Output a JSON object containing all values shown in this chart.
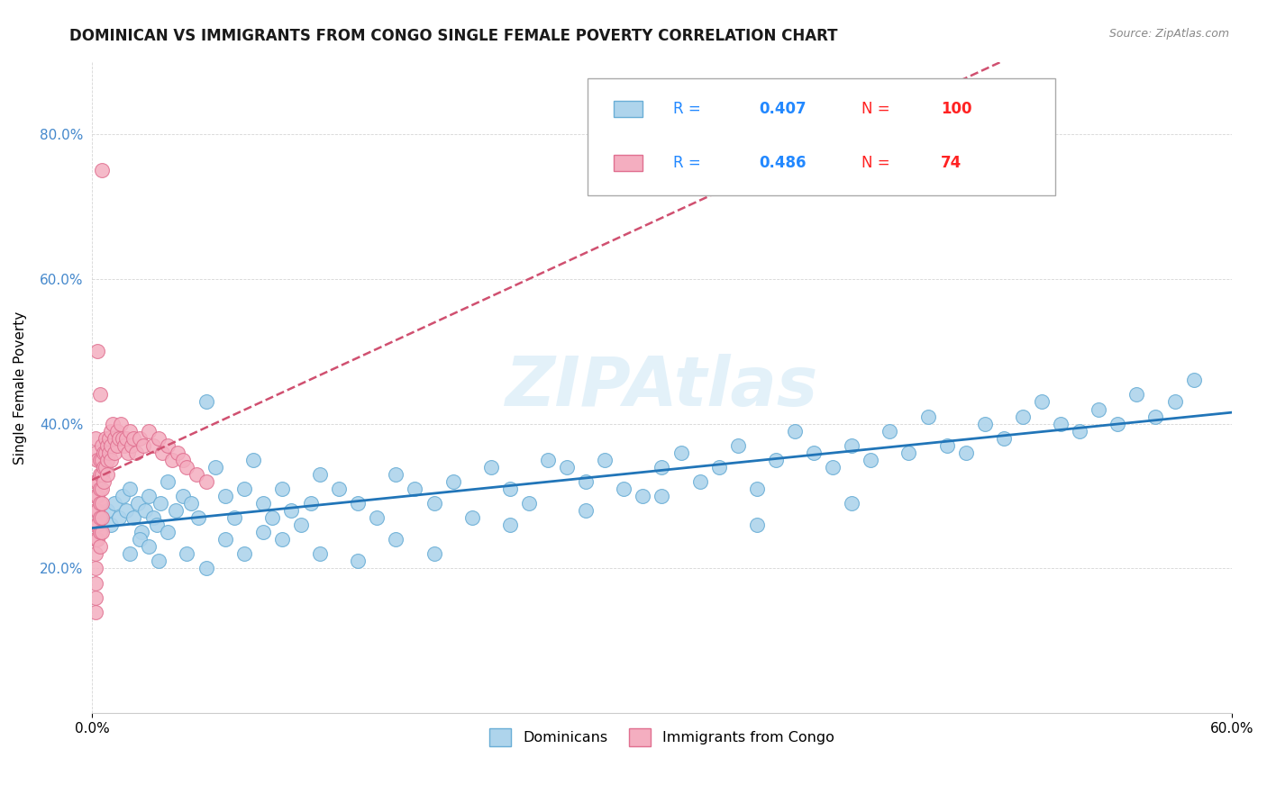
{
  "title": "DOMINICAN VS IMMIGRANTS FROM CONGO SINGLE FEMALE POVERTY CORRELATION CHART",
  "source": "Source: ZipAtlas.com",
  "ylabel": "Single Female Poverty",
  "xlim": [
    0.0,
    0.6
  ],
  "ylim": [
    0.0,
    0.9
  ],
  "x_ticks": [
    0.0,
    0.6
  ],
  "x_tick_labels": [
    "0.0%",
    "60.0%"
  ],
  "y_tick_labels": [
    "20.0%",
    "40.0%",
    "60.0%",
    "80.0%"
  ],
  "y_ticks": [
    0.2,
    0.4,
    0.6,
    0.8
  ],
  "dominicans_R": 0.407,
  "dominicans_N": 100,
  "congo_R": 0.486,
  "congo_N": 74,
  "dominican_color": "#aed4ec",
  "dominican_edge": "#6aaed6",
  "congo_color": "#f4aec0",
  "congo_edge": "#e07090",
  "blue_line_color": "#2175b8",
  "pink_line_color": "#d05070",
  "legend_R_color": "#2288ff",
  "legend_N_color": "#ff2222",
  "watermark": "ZIPAtlas",
  "background_color": "#ffffff",
  "dominicans_x": [
    0.005,
    0.008,
    0.01,
    0.012,
    0.014,
    0.016,
    0.018,
    0.02,
    0.022,
    0.024,
    0.026,
    0.028,
    0.03,
    0.032,
    0.034,
    0.036,
    0.04,
    0.044,
    0.048,
    0.052,
    0.056,
    0.06,
    0.065,
    0.07,
    0.075,
    0.08,
    0.085,
    0.09,
    0.095,
    0.1,
    0.105,
    0.11,
    0.115,
    0.12,
    0.13,
    0.14,
    0.15,
    0.16,
    0.17,
    0.18,
    0.19,
    0.2,
    0.21,
    0.22,
    0.23,
    0.24,
    0.25,
    0.26,
    0.27,
    0.28,
    0.29,
    0.3,
    0.31,
    0.32,
    0.33,
    0.34,
    0.35,
    0.36,
    0.37,
    0.38,
    0.39,
    0.4,
    0.41,
    0.42,
    0.43,
    0.44,
    0.45,
    0.46,
    0.47,
    0.48,
    0.49,
    0.5,
    0.51,
    0.52,
    0.53,
    0.54,
    0.55,
    0.56,
    0.57,
    0.58,
    0.02,
    0.025,
    0.03,
    0.035,
    0.04,
    0.05,
    0.06,
    0.07,
    0.08,
    0.09,
    0.1,
    0.12,
    0.14,
    0.16,
    0.18,
    0.22,
    0.26,
    0.3,
    0.35,
    0.4
  ],
  "dominicans_y": [
    0.27,
    0.28,
    0.26,
    0.29,
    0.27,
    0.3,
    0.28,
    0.31,
    0.27,
    0.29,
    0.25,
    0.28,
    0.3,
    0.27,
    0.26,
    0.29,
    0.32,
    0.28,
    0.3,
    0.29,
    0.27,
    0.43,
    0.34,
    0.3,
    0.27,
    0.31,
    0.35,
    0.29,
    0.27,
    0.31,
    0.28,
    0.26,
    0.29,
    0.33,
    0.31,
    0.29,
    0.27,
    0.33,
    0.31,
    0.29,
    0.32,
    0.27,
    0.34,
    0.31,
    0.29,
    0.35,
    0.34,
    0.32,
    0.35,
    0.31,
    0.3,
    0.34,
    0.36,
    0.32,
    0.34,
    0.37,
    0.31,
    0.35,
    0.39,
    0.36,
    0.34,
    0.37,
    0.35,
    0.39,
    0.36,
    0.41,
    0.37,
    0.36,
    0.4,
    0.38,
    0.41,
    0.43,
    0.4,
    0.39,
    0.42,
    0.4,
    0.44,
    0.41,
    0.43,
    0.46,
    0.22,
    0.24,
    0.23,
    0.21,
    0.25,
    0.22,
    0.2,
    0.24,
    0.22,
    0.25,
    0.24,
    0.22,
    0.21,
    0.24,
    0.22,
    0.26,
    0.28,
    0.3,
    0.26,
    0.29
  ],
  "congo_x": [
    0.002,
    0.002,
    0.002,
    0.002,
    0.002,
    0.002,
    0.002,
    0.002,
    0.002,
    0.002,
    0.002,
    0.002,
    0.003,
    0.003,
    0.003,
    0.003,
    0.003,
    0.003,
    0.004,
    0.004,
    0.004,
    0.004,
    0.004,
    0.004,
    0.004,
    0.005,
    0.005,
    0.005,
    0.005,
    0.005,
    0.005,
    0.005,
    0.006,
    0.006,
    0.006,
    0.007,
    0.007,
    0.007,
    0.008,
    0.008,
    0.008,
    0.009,
    0.009,
    0.01,
    0.01,
    0.01,
    0.011,
    0.012,
    0.012,
    0.013,
    0.013,
    0.014,
    0.015,
    0.016,
    0.017,
    0.018,
    0.019,
    0.02,
    0.021,
    0.022,
    0.023,
    0.025,
    0.027,
    0.03,
    0.032,
    0.035,
    0.037,
    0.04,
    0.042,
    0.045,
    0.048,
    0.05,
    0.055,
    0.06
  ],
  "congo_y": [
    0.32,
    0.3,
    0.28,
    0.26,
    0.24,
    0.22,
    0.2,
    0.18,
    0.16,
    0.14,
    0.36,
    0.38,
    0.35,
    0.32,
    0.3,
    0.28,
    0.26,
    0.24,
    0.35,
    0.33,
    0.31,
    0.29,
    0.27,
    0.25,
    0.23,
    0.37,
    0.35,
    0.33,
    0.31,
    0.29,
    0.27,
    0.25,
    0.36,
    0.34,
    0.32,
    0.38,
    0.36,
    0.34,
    0.37,
    0.35,
    0.33,
    0.38,
    0.36,
    0.39,
    0.37,
    0.35,
    0.4,
    0.38,
    0.36,
    0.39,
    0.37,
    0.38,
    0.4,
    0.38,
    0.37,
    0.38,
    0.36,
    0.39,
    0.37,
    0.38,
    0.36,
    0.38,
    0.37,
    0.39,
    0.37,
    0.38,
    0.36,
    0.37,
    0.35,
    0.36,
    0.35,
    0.34,
    0.33,
    0.32
  ]
}
